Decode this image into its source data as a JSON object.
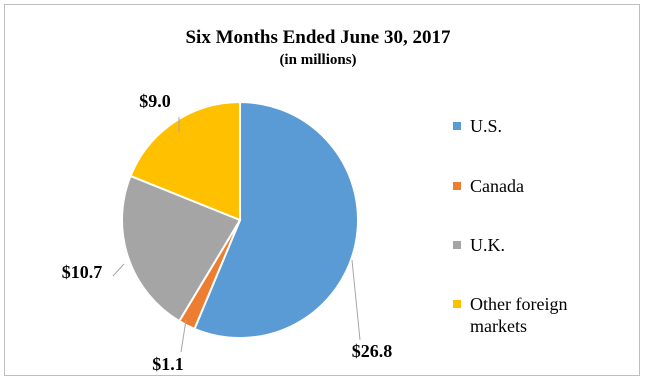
{
  "chart_data": {
    "type": "pie",
    "title": "Six Months Ended June 30, 2017",
    "subtitle": "(in millions)",
    "categories": [
      "U.S.",
      "Canada",
      "U.K.",
      "Other foreign markets"
    ],
    "values": [
      26.8,
      1.1,
      10.7,
      9.0
    ],
    "data_labels": [
      "$26.8",
      "$1.1",
      "$10.7",
      "$9.0"
    ],
    "colors": [
      "#5B9BD5",
      "#ED7D31",
      "#A5A5A5",
      "#FFC000"
    ],
    "legend": "right"
  }
}
